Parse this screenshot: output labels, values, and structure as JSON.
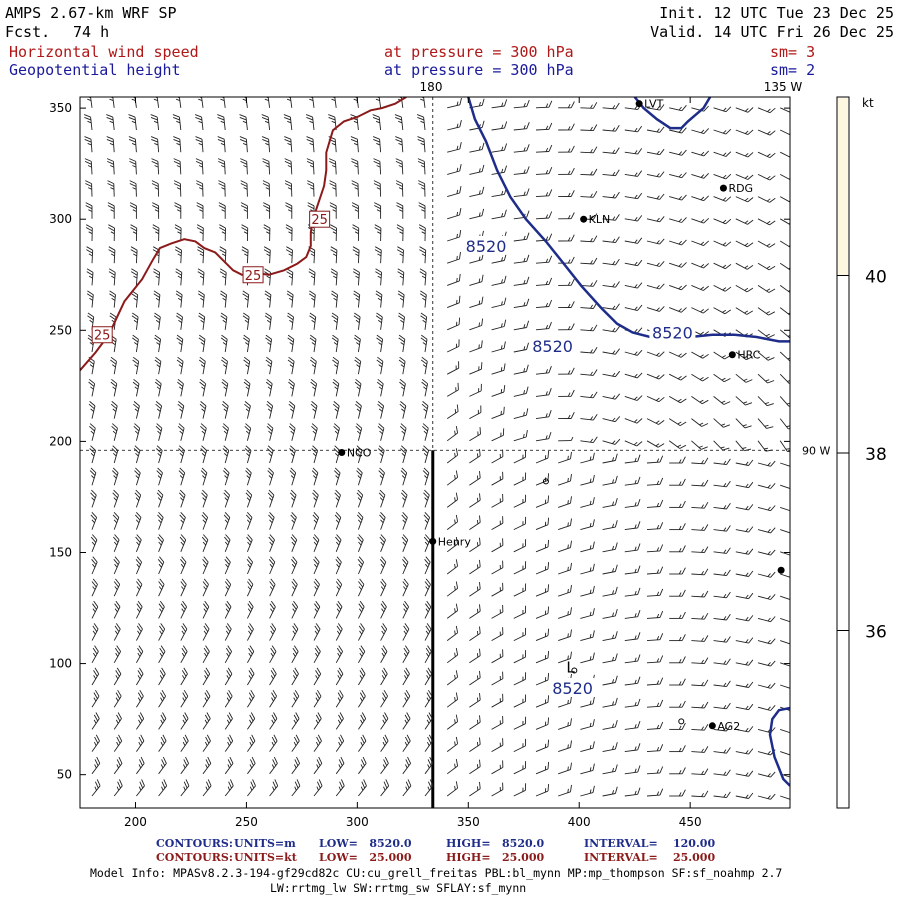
{
  "header": {
    "model": "AMPS 2.67-km WRF SP",
    "fcst_label": "Fcst.",
    "fcst_value": "74 h",
    "init": "Init. 12 UTC Tue 23 Dec 25",
    "valid": "Valid. 14 UTC Fri 26 Dec 25",
    "field1": "Horizontal wind speed",
    "field1_level": "at pressure =  300 hPa",
    "field1_sm": "sm= 3",
    "field2": "Geopotential height",
    "field2_level": "at pressure =  300 hPa",
    "field2_sm": "sm= 2"
  },
  "colors": {
    "wind": "#8b1a1a",
    "height": "#1f2d8a",
    "level_text": "#b01818",
    "field2_text": "#1a1a9a",
    "colorbar_fill": "#fdf6e0"
  },
  "map_labels": {
    "meridian_top": "180",
    "meridian_right": "135 W",
    "parallel_right": "90 W"
  },
  "stations": [
    {
      "name": "LVT",
      "x": 427,
      "y": 352
    },
    {
      "name": "RDG",
      "x": 465,
      "y": 314
    },
    {
      "name": "KLN",
      "x": 402,
      "y": 300
    },
    {
      "name": "HRC",
      "x": 469,
      "y": 239
    },
    {
      "name": "NCO",
      "x": 293,
      "y": 195
    },
    {
      "name": "Henry",
      "x": 334,
      "y": 155
    },
    {
      "name": "AG2",
      "x": 460,
      "y": 72
    },
    {
      "name": "",
      "x": 491,
      "y": 142
    }
  ],
  "low_marker": {
    "label": "L",
    "x": 396,
    "y": 96
  },
  "chart_data": {
    "type": "contour_map_with_wind_barbs",
    "xlim": [
      175,
      495
    ],
    "ylim": [
      35,
      355
    ],
    "x_ticks": [
      200,
      250,
      300,
      350,
      400,
      450
    ],
    "y_ticks": [
      50,
      100,
      150,
      200,
      250,
      300,
      350
    ],
    "wind_speed_contours": {
      "units": "kt",
      "low": "25.000",
      "high": "25.000",
      "interval": "25.000",
      "labels": [
        {
          "text": "25",
          "x": 185,
          "y": 248
        },
        {
          "text": "25",
          "x": 253,
          "y": 275
        },
        {
          "text": "25",
          "x": 283,
          "y": 300
        }
      ],
      "line": [
        [
          175,
          232
        ],
        [
          182,
          240
        ],
        [
          188,
          248
        ],
        [
          195,
          263
        ],
        [
          203,
          273
        ],
        [
          208,
          282
        ],
        [
          211,
          287
        ],
        [
          216,
          289
        ],
        [
          222,
          291
        ],
        [
          227,
          290
        ],
        [
          231,
          287
        ],
        [
          236,
          285
        ],
        [
          240,
          281
        ],
        [
          244,
          277
        ],
        [
          248,
          275
        ],
        [
          253,
          276
        ],
        [
          260,
          275
        ],
        [
          267,
          277
        ],
        [
          273,
          280
        ],
        [
          277,
          283
        ],
        [
          279,
          288
        ],
        [
          279,
          294
        ],
        [
          280,
          300
        ],
        [
          282,
          306
        ],
        [
          285,
          315
        ],
        [
          286,
          322
        ],
        [
          286,
          330
        ],
        [
          289,
          340
        ],
        [
          294,
          344
        ],
        [
          300,
          346
        ],
        [
          306,
          349
        ],
        [
          311,
          350
        ],
        [
          317,
          352
        ],
        [
          322,
          355
        ]
      ]
    },
    "height_contours": {
      "units": "m",
      "low": "8520.0",
      "high": "8520.0",
      "interval": "120.00",
      "value": "8520",
      "labels": [
        {
          "text": "8520",
          "x": 358,
          "y": 288
        },
        {
          "text": "8520",
          "x": 388,
          "y": 243
        },
        {
          "text": "8520",
          "x": 442,
          "y": 249
        },
        {
          "text": "8520",
          "x": 397,
          "y": 89
        }
      ],
      "lines": [
        [
          [
            350,
            355
          ],
          [
            353,
            345
          ],
          [
            358,
            335
          ],
          [
            363,
            322
          ],
          [
            369,
            310
          ],
          [
            376,
            300
          ],
          [
            385,
            290
          ],
          [
            393,
            280
          ],
          [
            401,
            270
          ],
          [
            410,
            260
          ],
          [
            417,
            253
          ],
          [
            424,
            249
          ],
          [
            432,
            247
          ],
          [
            440,
            247
          ]
        ],
        [
          [
            440,
            247
          ],
          [
            450,
            247
          ],
          [
            460,
            248
          ],
          [
            470,
            248
          ],
          [
            480,
            247
          ],
          [
            490,
            245
          ],
          [
            495,
            245
          ]
        ],
        [
          [
            495,
            45
          ],
          [
            492,
            48
          ],
          [
            488,
            58
          ],
          [
            486,
            68
          ],
          [
            487,
            75
          ],
          [
            490,
            79
          ],
          [
            495,
            80
          ]
        ],
        [
          [
            425,
            355
          ],
          [
            429,
            350
          ],
          [
            435,
            345
          ],
          [
            441,
            341
          ],
          [
            446,
            341
          ],
          [
            449,
            344
          ],
          [
            456,
            350
          ],
          [
            459,
            355
          ]
        ]
      ]
    },
    "meridian_x": 334,
    "parallel_y": 196,
    "colorbar": {
      "units": "kt",
      "ticks": [
        36,
        38,
        40
      ],
      "shaded_above": 40
    },
    "footer": {
      "row1": {
        "label": "CONTOURS:",
        "units": "UNITS=m",
        "low": "LOW=   8520.0",
        "high": "HIGH=   8520.0",
        "interval": "INTERVAL=    120.00"
      },
      "row2": {
        "label": "CONTOURS:",
        "units": "UNITS=kt",
        "low": "LOW=   25.000",
        "high": "HIGH=   25.000",
        "interval": "INTERVAL=    25.000"
      },
      "model_info": "Model Info: MPASv8.2.3-194-gf29cd82c CU:cu_grell_freitas PBL:bl_mynn MP:mp_thompson SF:sf_noahmp 2.7",
      "model_info2": "LW:rrtmg_lw SW:rrtmg_sw SFLAY:sf_mynn"
    }
  }
}
